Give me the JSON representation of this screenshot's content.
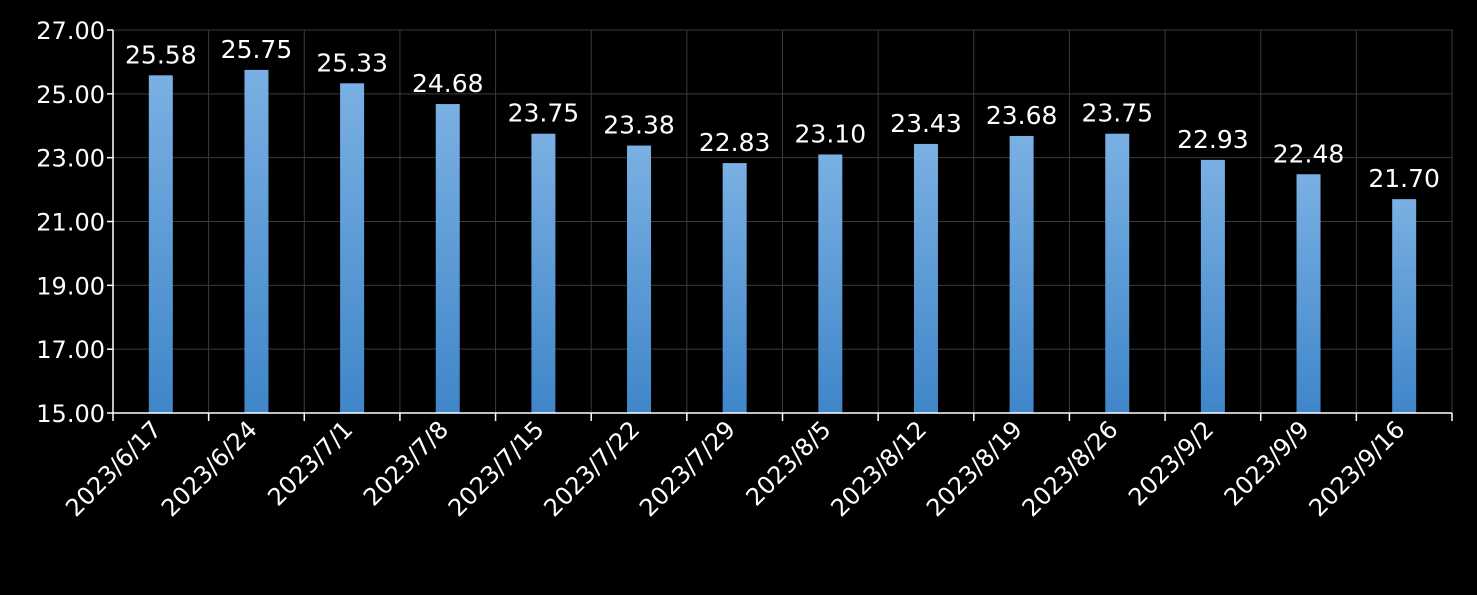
{
  "chart_data": {
    "type": "bar",
    "title": "",
    "xlabel": "",
    "ylabel": "",
    "ylim": [
      15,
      27
    ],
    "yticks": [
      "15.00",
      "17.00",
      "19.00",
      "21.00",
      "23.00",
      "25.00",
      "27.00"
    ],
    "categories": [
      "2023/6/17",
      "2023/6/24",
      "2023/7/1",
      "2023/7/8",
      "2023/7/15",
      "2023/7/22",
      "2023/7/29",
      "2023/8/5",
      "2023/8/12",
      "2023/8/19",
      "2023/8/26",
      "2023/9/2",
      "2023/9/9",
      "2023/9/16"
    ],
    "values": [
      25.58,
      25.75,
      25.33,
      24.68,
      23.75,
      23.38,
      22.83,
      23.1,
      23.43,
      23.68,
      23.75,
      22.93,
      22.48,
      21.7
    ],
    "data_labels": [
      "25.58",
      "25.75",
      "25.33",
      "24.68",
      "23.75",
      "23.38",
      "22.83",
      "23.10",
      "23.43",
      "23.68",
      "23.75",
      "22.93",
      "22.48",
      "21.70"
    ],
    "grid": true,
    "legend": "none",
    "colors": {
      "background": "#000000",
      "bar_top": "#7ab0e3",
      "bar_bottom": "#3f86c9",
      "grid": "#3a3a3a",
      "axis": "#ffffff",
      "text": "#ffffff"
    }
  }
}
